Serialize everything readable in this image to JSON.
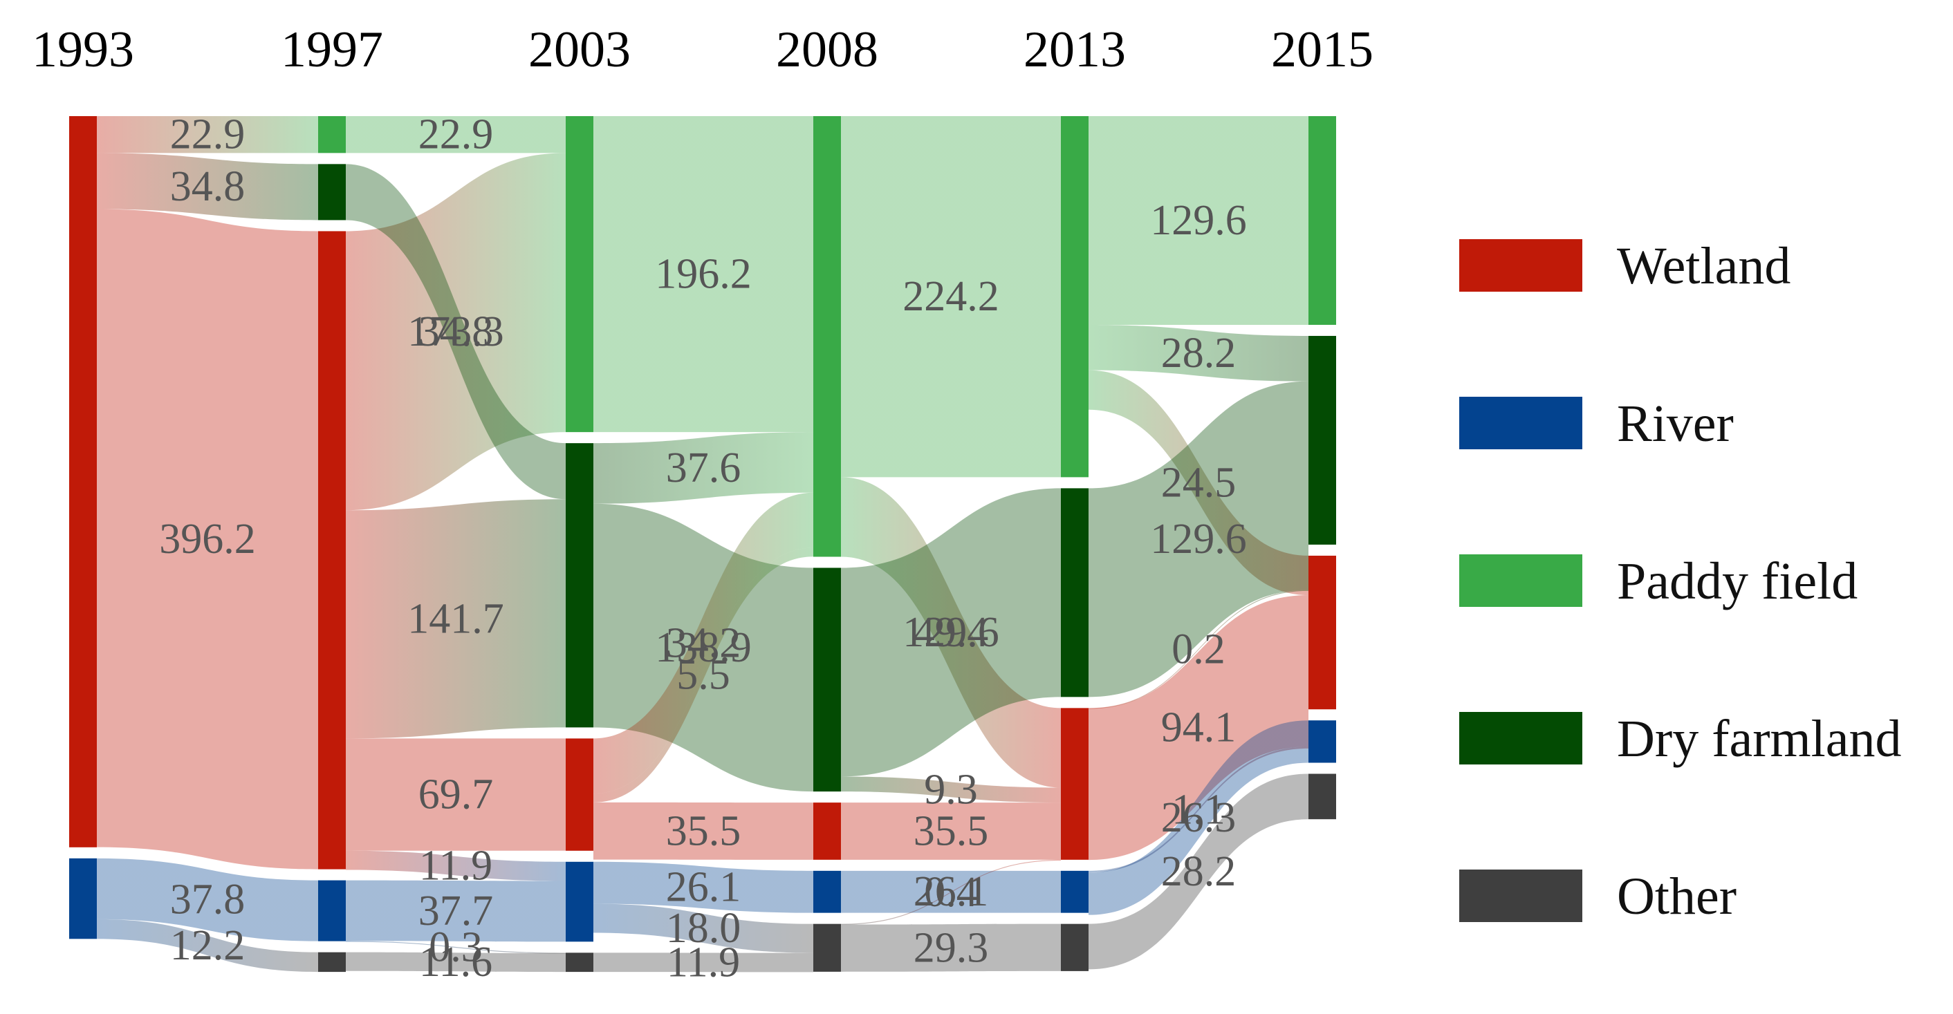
{
  "chart_data": {
    "type": "sankey",
    "title": "",
    "years": [
      "1993",
      "1997",
      "2003",
      "2008",
      "2013",
      "2015"
    ],
    "categories": [
      "Wetland",
      "River",
      "Paddy field",
      "Dry farmland",
      "Other"
    ],
    "colors": {
      "Wetland": "#c01a08",
      "River": "#03438f",
      "Paddy field": "#39aa47",
      "Dry farmland": "#034b03",
      "Other": "#3f3f3f"
    },
    "nodes": [
      {
        "id": "1993-Wetland",
        "year": "1993",
        "cat": "Wetland",
        "value": 454.0
      },
      {
        "id": "1993-River",
        "year": "1993",
        "cat": "River",
        "value": 50.0
      },
      {
        "id": "1997-Wetland",
        "year": "1997",
        "cat": "Wetland",
        "value": 396.2
      },
      {
        "id": "1997-Paddy",
        "year": "1997",
        "cat": "Paddy field",
        "value": 22.9
      },
      {
        "id": "1997-Dry",
        "year": "1997",
        "cat": "Dry farmland",
        "value": 34.8
      },
      {
        "id": "1997-River",
        "year": "1997",
        "cat": "River",
        "value": 37.8
      },
      {
        "id": "1997-Other",
        "year": "1997",
        "cat": "Other",
        "value": 12.2
      },
      {
        "id": "2003-Paddy",
        "year": "2003",
        "cat": "Paddy field",
        "value": 196.2
      },
      {
        "id": "2003-Dry",
        "year": "2003",
        "cat": "Dry farmland",
        "value": 176.5
      },
      {
        "id": "2003-Wetland",
        "year": "2003",
        "cat": "Wetland",
        "value": 69.7
      },
      {
        "id": "2003-River",
        "year": "2003",
        "cat": "River",
        "value": 49.6
      },
      {
        "id": "2003-Other",
        "year": "2003",
        "cat": "Other",
        "value": 11.9
      },
      {
        "id": "2008-Paddy",
        "year": "2008",
        "cat": "Paddy field",
        "value": 273.6
      },
      {
        "id": "2008-Dry",
        "year": "2008",
        "cat": "Dry farmland",
        "value": 138.9
      },
      {
        "id": "2008-Wetland",
        "year": "2008",
        "cat": "Wetland",
        "value": 35.5
      },
      {
        "id": "2008-River",
        "year": "2008",
        "cat": "River",
        "value": 26.1
      },
      {
        "id": "2008-Other",
        "year": "2008",
        "cat": "Other",
        "value": 29.7
      },
      {
        "id": "2013-Paddy",
        "year": "2013",
        "cat": "Paddy field",
        "value": 224.2
      },
      {
        "id": "2013-Dry",
        "year": "2013",
        "cat": "Dry farmland",
        "value": 129.6
      },
      {
        "id": "2013-Wetland",
        "year": "2013",
        "cat": "Wetland",
        "value": 94.2
      },
      {
        "id": "2013-River",
        "year": "2013",
        "cat": "River",
        "value": 26.1
      },
      {
        "id": "2013-Other",
        "year": "2013",
        "cat": "Other",
        "value": 29.3
      },
      {
        "id": "2015-Paddy",
        "year": "2015",
        "cat": "Paddy field",
        "value": 129.6
      },
      {
        "id": "2015-Dry",
        "year": "2015",
        "cat": "Dry farmland",
        "value": 129.6
      },
      {
        "id": "2015-Wetland",
        "year": "2015",
        "cat": "Wetland",
        "value": 95.4
      },
      {
        "id": "2015-River",
        "year": "2015",
        "cat": "River",
        "value": 26.3
      },
      {
        "id": "2015-Other",
        "year": "2015",
        "cat": "Other",
        "value": 28.2
      }
    ],
    "flows": [
      {
        "from": "1993-Wetland",
        "to": "1997-Wetland",
        "value": 396.2,
        "label": "396.2"
      },
      {
        "from": "1993-Wetland",
        "to": "1997-Paddy",
        "value": 22.9,
        "label": "22.9"
      },
      {
        "from": "1993-Wetland",
        "to": "1997-Dry",
        "value": 34.8,
        "label": "34.8"
      },
      {
        "from": "1993-River",
        "to": "1997-River",
        "value": 37.8,
        "label": "37.8"
      },
      {
        "from": "1993-River",
        "to": "1997-Other",
        "value": 12.2,
        "label": "12.2"
      },
      {
        "from": "1997-Wetland",
        "to": "2003-Paddy",
        "value": 173.3,
        "label": "173.3"
      },
      {
        "from": "1997-Wetland",
        "to": "2003-Dry",
        "value": 141.7,
        "label": "141.7"
      },
      {
        "from": "1997-Wetland",
        "to": "2003-Wetland",
        "value": 69.7,
        "label": "69.7"
      },
      {
        "from": "1997-Wetland",
        "to": "2003-River",
        "value": 11.9,
        "label": "11.9"
      },
      {
        "from": "1997-Paddy",
        "to": "2003-Paddy",
        "value": 22.9,
        "label": "22.9"
      },
      {
        "from": "1997-Dry",
        "to": "2003-Dry",
        "value": 34.8,
        "label": "34.8"
      },
      {
        "from": "1997-River",
        "to": "2003-River",
        "value": 37.7,
        "label": "37.7"
      },
      {
        "from": "1997-River",
        "to": "2003-Other",
        "value": 0.3,
        "label": "0.3"
      },
      {
        "from": "1997-Other",
        "to": "2003-Other",
        "value": 11.6,
        "label": "11.6"
      },
      {
        "from": "2003-Paddy",
        "to": "2008-Paddy",
        "value": 196.2,
        "label": "196.2"
      },
      {
        "from": "2003-Dry",
        "to": "2008-Paddy",
        "value": 37.6,
        "label": "37.6"
      },
      {
        "from": "2003-Dry",
        "to": "2008-Dry",
        "value": 138.9,
        "label": "138.9"
      },
      {
        "from": "2003-Wetland",
        "to": "2008-Paddy",
        "value": 34.2,
        "label": "34.2"
      },
      {
        "from": "2003-Wetland",
        "to": "2008-Paddy",
        "value": 5.5,
        "label": "5.5"
      },
      {
        "from": "2003-Wetland",
        "to": "2008-Wetland",
        "value": 35.5,
        "label": "35.5"
      },
      {
        "from": "2003-River",
        "to": "2008-River",
        "value": 26.1,
        "label": "26.1"
      },
      {
        "from": "2003-River",
        "to": "2008-Other",
        "value": 18.0,
        "label": "18.0"
      },
      {
        "from": "2003-Other",
        "to": "2008-Other",
        "value": 11.9,
        "label": "11.9"
      },
      {
        "from": "2008-Paddy",
        "to": "2013-Paddy",
        "value": 224.2,
        "label": "224.2"
      },
      {
        "from": "2008-Paddy",
        "to": "2013-Wetland",
        "value": 49.4,
        "label": "49.4"
      },
      {
        "from": "2008-Dry",
        "to": "2013-Dry",
        "value": 129.6,
        "label": "129.6"
      },
      {
        "from": "2008-Dry",
        "to": "2013-Wetland",
        "value": 9.3,
        "label": "9.3"
      },
      {
        "from": "2008-Wetland",
        "to": "2013-Wetland",
        "value": 35.5,
        "label": "35.5"
      },
      {
        "from": "2008-River",
        "to": "2013-River",
        "value": 26.1,
        "label": "26.1"
      },
      {
        "from": "2008-Other",
        "to": "2013-Other",
        "value": 29.3,
        "label": "29.3"
      },
      {
        "from": "2008-Other",
        "to": "2013-Wetland",
        "value": 0.4,
        "label": "0.4"
      },
      {
        "from": "2013-Paddy",
        "to": "2015-Paddy",
        "value": 129.6,
        "label": "129.6"
      },
      {
        "from": "2013-Paddy",
        "to": "2015-Dry",
        "value": 28.2,
        "label": "28.2"
      },
      {
        "from": "2013-Paddy",
        "to": "2015-Wetland",
        "value": 24.5,
        "label": "24.5"
      },
      {
        "from": "2013-Dry",
        "to": "2015-Dry",
        "value": 129.6,
        "label": "129.6"
      },
      {
        "from": "2013-Wetland",
        "to": "2015-Wetland",
        "value": 94.1,
        "label": "94.1"
      },
      {
        "from": "2013-Wetland",
        "to": "2015-Dry",
        "value": 0.2,
        "label": "0.2"
      },
      {
        "from": "2013-River",
        "to": "2015-Wetland",
        "value": 1.1,
        "label": "1.1"
      },
      {
        "from": "2013-River",
        "to": "2015-River",
        "value": 26.3,
        "label": "26.3"
      },
      {
        "from": "2013-Other",
        "to": "2015-Other",
        "value": 28.2,
        "label": "28.2"
      }
    ],
    "legend_position": "right"
  }
}
